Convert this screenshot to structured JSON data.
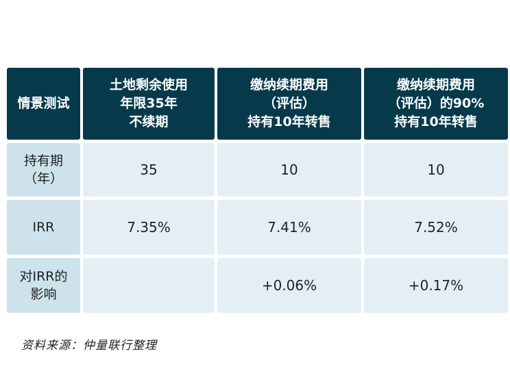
{
  "table": {
    "headers": [
      "情景测试",
      "土地剩余使用\n年限35年\n不续期",
      "缴纳续期费用\n（评估）\n持有10年转售",
      "缴纳续期费用\n（评估）的90%\n持有10年转售"
    ],
    "rows": [
      {
        "label": "持有期\n（年）",
        "values": [
          "35",
          "10",
          "10"
        ]
      },
      {
        "label": "IRR",
        "values": [
          "7.35%",
          "7.41%",
          "7.52%"
        ]
      },
      {
        "label": "对IRR的\n影响",
        "values": [
          "",
          "+0.06%",
          "+0.17%"
        ]
      }
    ]
  },
  "source": "资料来源：仲量联行整理",
  "colors": {
    "header_bg": "#063a4b",
    "rowhead_bg": "#cde2ea",
    "value_bg": "#e3eff4"
  }
}
